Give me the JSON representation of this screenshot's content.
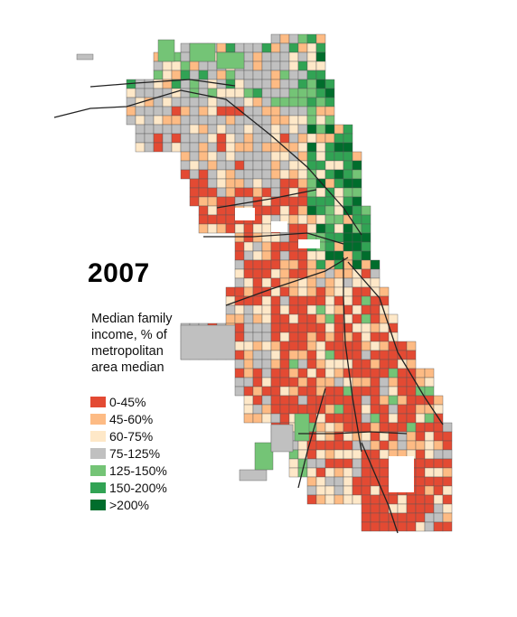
{
  "map": {
    "year": "2007",
    "legend_title_lines": [
      "Median family",
      "income, % of",
      "metropolitan",
      "area median"
    ],
    "legend": [
      {
        "label": "0-45%",
        "color": "#e34a33"
      },
      {
        "label": "45-60%",
        "color": "#fdbb84"
      },
      {
        "label": "60-75%",
        "color": "#fee8c8"
      },
      {
        "label": "75-125%",
        "color": "#c0c0c0"
      },
      {
        "label": "125-150%",
        "color": "#74c476"
      },
      {
        "label": "150-200%",
        "color": "#31a354"
      },
      {
        "label": ">200%",
        "color": "#006d2c"
      }
    ]
  }
}
